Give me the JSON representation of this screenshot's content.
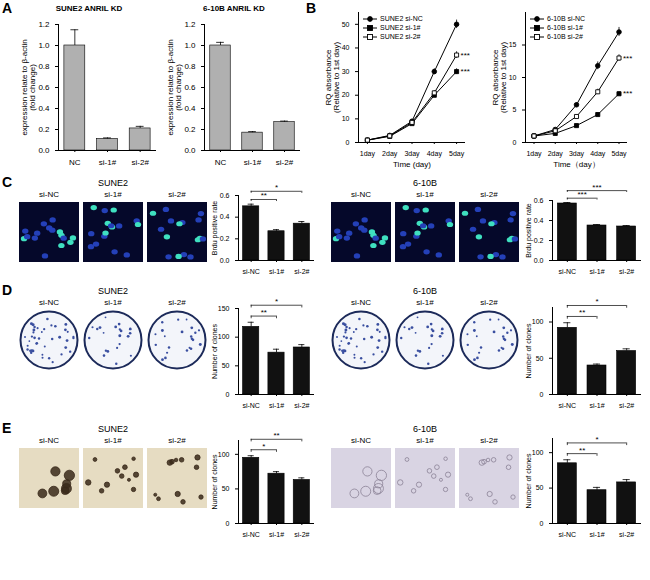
{
  "chart_data": [
    {
      "type": "bar",
      "panel": "A",
      "title": "SUNE2 ANRIL KD",
      "y_label": "expression relate to β-actin\n(fold change)",
      "categories": [
        "NC",
        "si-1#",
        "si-2#"
      ],
      "values": [
        1.0,
        0.11,
        0.21
      ],
      "errors": [
        0.15,
        0.01,
        0.02
      ],
      "color": "#b0b0b0",
      "ylim": [
        0,
        1.2
      ],
      "yticks": [
        {
          "value": 0,
          "label": "0.0"
        },
        0.2,
        0.4,
        0.6,
        0.8,
        {
          "value": 1,
          "label": "1.0"
        },
        1.2
      ]
    },
    {
      "type": "bar",
      "title": "6-10B ANRIL KD",
      "y_label": "expression relate to β-actin\n(fold change)",
      "categories": [
        "NC",
        "si-1#",
        "si-2#"
      ],
      "values": [
        1.0,
        0.17,
        0.27
      ],
      "errors": [
        0.03,
        0.01,
        0.01
      ],
      "color": "#b0b0b0",
      "ylim": [
        0,
        1.2
      ],
      "yticks": [
        {
          "value": 0,
          "label": "0.0"
        },
        0.2,
        0.4,
        0.6,
        0.8,
        {
          "value": 1,
          "label": "1.0"
        },
        1.2
      ]
    },
    {
      "type": "line",
      "panel": "B",
      "y_label": "RQ absorbance\n(Relative to 1st day)",
      "x_label": "Time (day)",
      "categories": [
        "1day",
        "2day",
        "3day",
        "4day",
        "5day"
      ],
      "ylim": [
        0,
        55
      ],
      "yticks": [
        0,
        10,
        20,
        30,
        40,
        50
      ],
      "legend": "top-left",
      "series": [
        {
          "name": "SUNE2 si-NC",
          "color": "#000000",
          "marker": "circle",
          "values": [
            1,
            3,
            9,
            30,
            50
          ],
          "errors": [
            0.1,
            0.2,
            0.5,
            1.2,
            1.8
          ]
        },
        {
          "name": "SUNE2 si-1#",
          "color": "#000000",
          "marker": "square",
          "values": [
            1,
            2.6,
            8,
            20,
            30
          ],
          "errors": [
            0.1,
            0.2,
            0.4,
            1.0,
            1.2
          ],
          "significance": "***"
        },
        {
          "name": "SUNE2 si-2#",
          "color": "#000000",
          "marker": "square-open",
          "values": [
            1,
            2.8,
            8.5,
            21,
            37
          ],
          "errors": [
            0.1,
            0.2,
            0.4,
            1.0,
            1.4
          ],
          "significance": "***"
        }
      ]
    },
    {
      "type": "line",
      "y_label": "RQ absorbance\n(Relative to 1st day)",
      "x_label": "Time（day）",
      "categories": [
        "1day",
        "2day",
        "3day",
        "4day",
        "5day"
      ],
      "ylim": [
        0,
        20
      ],
      "yticks": [
        0,
        5,
        10,
        15
      ],
      "legend": "top-left",
      "series": [
        {
          "name": "6-10B si-NC",
          "color": "#000000",
          "marker": "circle",
          "values": [
            1,
            2,
            5.8,
            11.8,
            17
          ],
          "errors": [
            0.05,
            0.1,
            0.3,
            0.6,
            0.7
          ]
        },
        {
          "name": "6-10B si-1#",
          "color": "#000000",
          "marker": "square",
          "values": [
            1,
            1.4,
            2.6,
            4.3,
            7.5
          ],
          "errors": [
            0.05,
            0.1,
            0.15,
            0.2,
            0.3
          ],
          "significance": "***"
        },
        {
          "name": "6-10B si-2#",
          "color": "#000000",
          "marker": "square-open",
          "values": [
            1,
            1.8,
            4,
            7.8,
            13
          ],
          "errors": [
            0.05,
            0.1,
            0.2,
            0.4,
            0.5
          ],
          "significance": "***"
        }
      ]
    },
    {
      "type": "image",
      "panel": "C",
      "title": "SUNE2",
      "labels": [
        "si-NC",
        "si-1#",
        "si-2#"
      ]
    },
    {
      "type": "bar",
      "y_label": "Brdu positive rate",
      "categories": [
        "si-NC",
        "si-1#",
        "si-2#"
      ],
      "values": [
        0.5,
        0.27,
        0.34
      ],
      "errors": [
        0.02,
        0.015,
        0.02
      ],
      "color": "#111111",
      "ylim": [
        0,
        0.6
      ],
      "yticks": [
        {
          "value": 0,
          "label": "0.0"
        },
        0.2,
        0.4,
        0.6
      ],
      "significance": [
        {
          "pair": [
            "si-NC",
            "si-1#"
          ],
          "label": "**"
        },
        {
          "pair": [
            "si-NC",
            "si-2#"
          ],
          "label": "*"
        }
      ]
    },
    {
      "type": "image",
      "title": "6-10B",
      "labels": [
        "si-NC",
        "si-1#",
        "si-2#"
      ]
    },
    {
      "type": "bar",
      "y_label": "Brdu positive rate",
      "categories": [
        "si-NC",
        "si-1#",
        "si-2#"
      ],
      "values": [
        0.57,
        0.35,
        0.34
      ],
      "errors": [
        0.01,
        0.01,
        0.01
      ],
      "color": "#111111",
      "ylim": [
        0,
        0.6
      ],
      "yticks": [
        {
          "value": 0,
          "label": "0.0"
        },
        0.2,
        0.4,
        0.6
      ],
      "significance": [
        {
          "pair": [
            "si-NC",
            "si-1#"
          ],
          "label": "***"
        },
        {
          "pair": [
            "si-NC",
            "si-2#"
          ],
          "label": "***"
        }
      ]
    },
    {
      "type": "image",
      "panel": "D",
      "title": "SUNE2",
      "labels": [
        "si-NC",
        "si-1#",
        "si-2#"
      ]
    },
    {
      "type": "bar",
      "y_label": "Number of clones",
      "categories": [
        "si-NC",
        "si-1#",
        "si-2#"
      ],
      "values": [
        118,
        73,
        82
      ],
      "errors": [
        8,
        6,
        5
      ],
      "color": "#111111",
      "ylim": [
        0,
        150
      ],
      "yticks": [
        0,
        50,
        100,
        150
      ],
      "significance": [
        {
          "pair": [
            "si-NC",
            "si-1#"
          ],
          "label": "**"
        },
        {
          "pair": [
            "si-NC",
            "si-2#"
          ],
          "label": "*"
        }
      ]
    },
    {
      "type": "image",
      "title": "6-10B",
      "labels": [
        "si-NC",
        "si-1#",
        "si-2#"
      ]
    },
    {
      "type": "bar",
      "y_label": "Number of clones",
      "categories": [
        "si-NC",
        "si-1#",
        "si-2#"
      ],
      "values": [
        92,
        40,
        60
      ],
      "errors": [
        7,
        2,
        3
      ],
      "color": "#111111",
      "ylim": [
        0,
        120
      ],
      "yticks": [
        0,
        50,
        100
      ],
      "significance": [
        {
          "pair": [
            "si-NC",
            "si-1#"
          ],
          "label": "**"
        },
        {
          "pair": [
            "si-NC",
            "si-2#"
          ],
          "label": "*"
        }
      ]
    },
    {
      "type": "image",
      "panel": "E",
      "title": "SUNE2",
      "labels": [
        "si-NC",
        "si-1#",
        "si-2#"
      ]
    },
    {
      "type": "bar",
      "y_label": "Number of clones",
      "categories": [
        "si-NC",
        "si-1#",
        "si-2#"
      ],
      "values": [
        95,
        72,
        63
      ],
      "errors": [
        3,
        3,
        3
      ],
      "color": "#111111",
      "ylim": [
        0,
        120
      ],
      "yticks": [
        0,
        50,
        100
      ],
      "significance": [
        {
          "pair": [
            "si-NC",
            "si-1#"
          ],
          "label": "*"
        },
        {
          "pair": [
            "si-NC",
            "si-2#"
          ],
          "label": "**"
        }
      ]
    },
    {
      "type": "image",
      "title": "6-10B",
      "labels": [
        "si-NC",
        "si-1#",
        "si-2#"
      ]
    },
    {
      "type": "bar",
      "y_label": "Number of clones",
      "categories": [
        "si-NC",
        "si-1#",
        "si-2#"
      ],
      "values": [
        85,
        47,
        58
      ],
      "errors": [
        5,
        4,
        4
      ],
      "color": "#111111",
      "ylim": [
        0,
        120
      ],
      "yticks": [
        0,
        50,
        100
      ],
      "significance": [
        {
          "pair": [
            "si-NC",
            "si-1#"
          ],
          "label": "**"
        },
        {
          "pair": [
            "si-NC",
            "si-2#"
          ],
          "label": "*"
        }
      ]
    }
  ]
}
